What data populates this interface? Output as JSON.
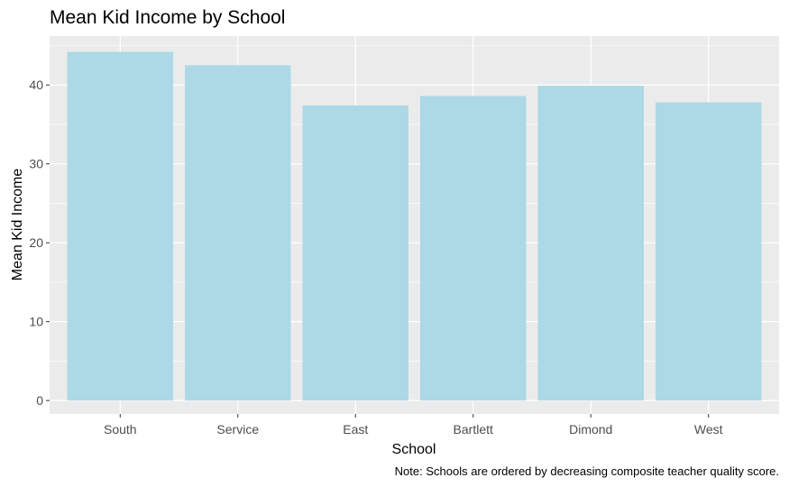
{
  "chart_data": {
    "type": "bar",
    "title": "Mean Kid Income by School",
    "xlabel": "School",
    "ylabel": "Mean Kid Income",
    "caption": "Note: Schools are ordered by decreasing composite teacher quality score.",
    "categories": [
      "South",
      "Service",
      "East",
      "Bartlett",
      "Dimond",
      "West"
    ],
    "values": [
      44.2,
      42.5,
      37.4,
      38.6,
      39.9,
      37.8
    ],
    "ylim": [
      -1.7,
      46.2
    ],
    "yticks": [
      0,
      10,
      20,
      30,
      40
    ],
    "ytick_labels": [
      "0",
      "10",
      "20",
      "30",
      "40"
    ],
    "grid": true,
    "colors": {
      "bar_fill": "#add8e6",
      "panel_background": "#ebebeb",
      "grid_line": "#ffffff",
      "tick_text": "#4d4d4d",
      "tick_mark": "#333333"
    }
  }
}
